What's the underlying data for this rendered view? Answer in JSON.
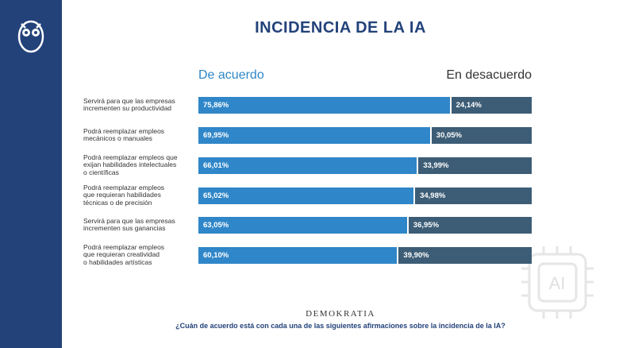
{
  "chart_data": {
    "type": "bar",
    "orientation": "horizontal",
    "stacked": true,
    "title": "INCIDENCIA DE LA IA",
    "categories": [
      "Servirá para que las empresas\nincrementen su productividad",
      "Podrá reemplazar empleos\nmecánicos o manuales",
      "Podrá reemplazar empleos que\nexijan habilidades intelectuales\no científicas",
      "Podrá reemplazar empleos\nque requieran habilidades\ntécnicas o de precisión",
      "Servirá para que las empresas\nincrementen sus ganancias",
      "Podrá reemplazar empleos\nque requieran creatividad\no habilidades artísticas"
    ],
    "series": [
      {
        "name": "De acuerdo",
        "color": "#2f86c8",
        "values": [
          75.86,
          69.95,
          66.01,
          65.02,
          63.05,
          60.1
        ],
        "value_labels": [
          "75,86%",
          "69,95%",
          "66,01%",
          "65,02%",
          "63,05%",
          "60,10%"
        ]
      },
      {
        "name": "En desacuerdo",
        "color": "#3d5d76",
        "values": [
          24.14,
          30.05,
          33.99,
          34.98,
          36.95,
          39.9
        ],
        "value_labels": [
          "24,14%",
          "30,05%",
          "33,99%",
          "34,98%",
          "36,95%",
          "39,90%"
        ]
      }
    ],
    "xlim": [
      0,
      100
    ],
    "source": "DEMOKRATIA",
    "question": "¿Cuán de acuerdo está con cada una de las siguientes afirmaciones sobre la incidencia de la IA?"
  }
}
